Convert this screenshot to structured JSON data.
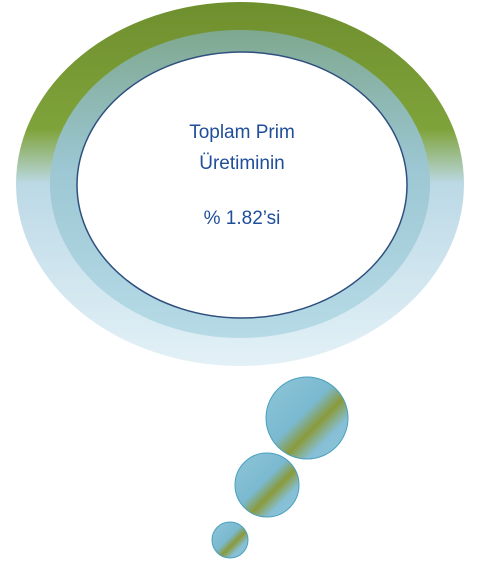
{
  "bubble": {
    "lines": [
      "Toplam Prim",
      "Üretiminin",
      "% 1.82’si"
    ]
  }
}
